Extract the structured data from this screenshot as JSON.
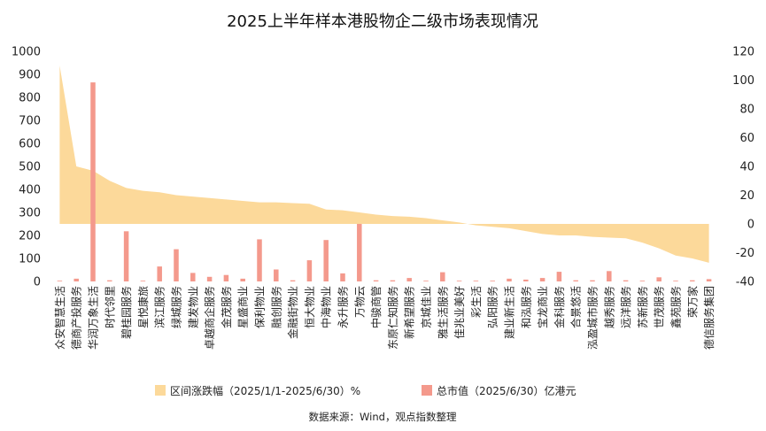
{
  "chart_data": {
    "type": "bar+area",
    "title": "2025上半年样本港股物企二级市场表现情况",
    "categories": [
      "众安智慧生活",
      "德商产投服务",
      "华润万象生活",
      "时代邻里",
      "碧桂园服务",
      "星悦康旅",
      "滨江服务",
      "绿城服务",
      "建发物业",
      "卓越商企服务",
      "金茂服务",
      "星盛商业",
      "保利物业",
      "融创服务",
      "金融街物业",
      "恒大物业",
      "中海物业",
      "永升服务",
      "万物云",
      "中骏商管",
      "东原仁知服务",
      "新希望服务",
      "京城佳业",
      "雅生活服务",
      "佳兆业美好",
      "彩生活",
      "弘阳服务",
      "建业新生活",
      "和泓服务",
      "宝龙商业",
      "金科服务",
      "合景悠活",
      "泓盈城市服务",
      "越秀服务",
      "远洋服务",
      "苏新服务",
      "世茂服务",
      "鑫苑服务",
      "荣万家",
      "德信服务集团"
    ],
    "series": [
      {
        "name": "区间涨跌幅（2025/1/1-2025/6/30）%",
        "type": "area",
        "axis": "right",
        "color": "#FCD99A",
        "values": [
          110,
          40,
          37,
          30,
          25,
          23,
          22,
          20,
          19,
          18,
          17,
          16,
          15,
          15,
          14.5,
          14,
          10,
          9.5,
          8,
          6.5,
          5.5,
          5,
          4,
          2.5,
          1,
          -1,
          -2,
          -3,
          -5,
          -7,
          -8,
          -8,
          -9,
          -9.5,
          -10,
          -13,
          -17,
          -22,
          -24,
          -27
        ]
      },
      {
        "name": "总市值（2025/6/30）亿港元",
        "type": "bar",
        "axis": "left",
        "color": "#F4998C",
        "values": [
          2,
          12,
          865,
          5,
          218,
          3,
          65,
          140,
          37,
          20,
          28,
          12,
          183,
          52,
          5,
          92,
          180,
          35,
          250,
          5,
          5,
          15,
          3,
          40,
          1,
          1,
          1,
          12,
          8,
          15,
          42,
          5,
          5,
          45,
          5,
          3,
          18,
          3,
          5,
          10
        ]
      }
    ],
    "y_left": {
      "min": 0,
      "max": 1000,
      "ticks": [
        0,
        100,
        200,
        300,
        400,
        500,
        600,
        700,
        800,
        900,
        1000
      ]
    },
    "y_right": {
      "min": -40,
      "max": 120,
      "ticks": [
        -40,
        -20,
        0,
        20,
        40,
        60,
        80,
        100,
        120
      ]
    },
    "grid": false,
    "legend_position": "bottom",
    "source": "数据来源：Wind，观点指数整理"
  }
}
